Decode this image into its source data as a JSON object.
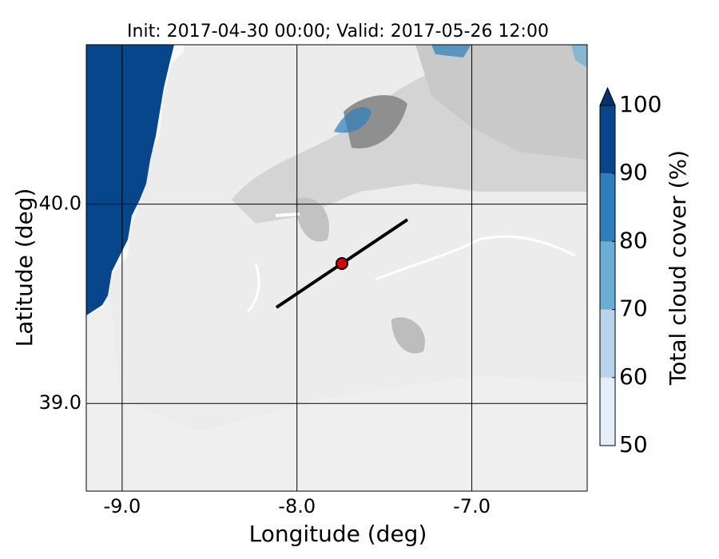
{
  "title": "Init: 2017-04-30 00:00; Valid: 2017-05-26 12:00",
  "x_axis": {
    "label": "Longitude (deg)",
    "lim": [
      -9.205,
      -6.34
    ],
    "ticks": [
      {
        "value": -9,
        "label": "-9.0"
      },
      {
        "value": -8,
        "label": "-8.0"
      },
      {
        "value": -7,
        "label": "-7.0"
      }
    ]
  },
  "y_axis": {
    "label": "Latitude (deg)",
    "lim": [
      38.56,
      40.8
    ],
    "ticks": [
      {
        "value": 39,
        "label": "39.0"
      },
      {
        "value": 40,
        "label": "40.0"
      }
    ]
  },
  "colorbar": {
    "label": "Total cloud cover (%)",
    "lim": [
      50,
      100
    ],
    "ticks": [
      50,
      60,
      70,
      80,
      90,
      100
    ],
    "colors": [
      "#e3eef8",
      "#b7d4ea",
      "#6aaed6",
      "#2e7ebc",
      "#08468b"
    ],
    "extend_color": "#08306b"
  }
}
